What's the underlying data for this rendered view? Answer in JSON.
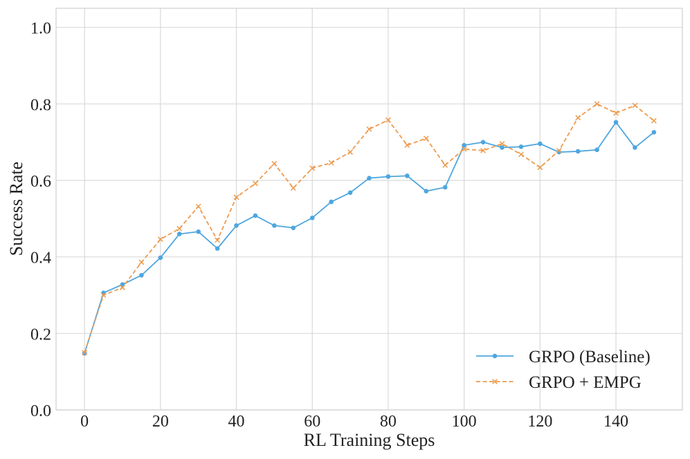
{
  "chart_data": {
    "type": "line",
    "title": "",
    "xlabel": "RL Training Steps",
    "ylabel": "Success Rate",
    "xlim": [
      -7.5,
      157.5
    ],
    "ylim": [
      0.0,
      1.05
    ],
    "x_ticks": [
      0,
      20,
      40,
      60,
      80,
      100,
      120,
      140
    ],
    "x_tick_labels": [
      "0",
      "20",
      "40",
      "60",
      "80",
      "100",
      "120",
      "140"
    ],
    "y_ticks": [
      0.0,
      0.2,
      0.4,
      0.6,
      0.8,
      1.0
    ],
    "y_tick_labels": [
      "0.0",
      "0.2",
      "0.4",
      "0.6",
      "0.8",
      "1.0"
    ],
    "grid": true,
    "legend_position": "lower-right",
    "x": [
      0,
      5,
      10,
      15,
      20,
      25,
      30,
      35,
      40,
      45,
      50,
      55,
      60,
      65,
      70,
      75,
      80,
      85,
      90,
      95,
      100,
      105,
      110,
      115,
      120,
      125,
      130,
      135,
      140,
      145,
      150
    ],
    "series": [
      {
        "name": "GRPO (Baseline)",
        "color": "#4ea6df",
        "marker": "circle",
        "line_style": "solid",
        "values": [
          0.148,
          0.306,
          0.328,
          0.352,
          0.398,
          0.46,
          0.466,
          0.422,
          0.482,
          0.508,
          0.482,
          0.476,
          0.502,
          0.544,
          0.568,
          0.606,
          0.61,
          0.612,
          0.572,
          0.582,
          0.692,
          0.7,
          0.686,
          0.688,
          0.696,
          0.674,
          0.676,
          0.68,
          0.752,
          0.686,
          0.726
        ]
      },
      {
        "name": "GRPO + EMPG",
        "color": "#ee9a4c",
        "marker": "x",
        "line_style": "dashed",
        "values": [
          0.15,
          0.3,
          0.32,
          0.386,
          0.446,
          0.474,
          0.532,
          0.444,
          0.556,
          0.592,
          0.644,
          0.58,
          0.632,
          0.646,
          0.674,
          0.734,
          0.758,
          0.692,
          0.71,
          0.64,
          0.682,
          0.678,
          0.696,
          0.668,
          0.634,
          0.678,
          0.764,
          0.8,
          0.776,
          0.796,
          0.756
        ]
      }
    ]
  }
}
